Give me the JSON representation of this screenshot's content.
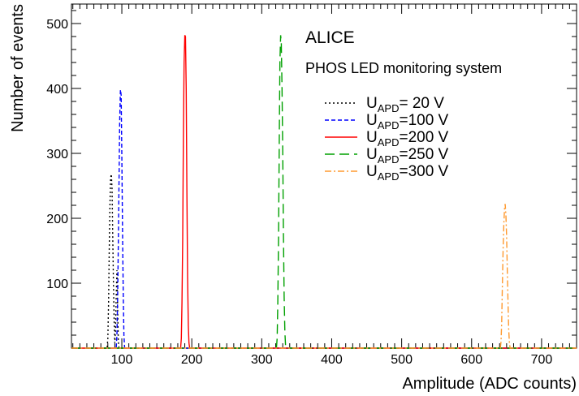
{
  "chart_data": {
    "type": "line",
    "xlabel": "Amplitude (ADC counts)",
    "ylabel": "Number of events",
    "xlim": [
      28,
      750
    ],
    "ylim": [
      0,
      530
    ],
    "x_ticks": [
      100,
      200,
      300,
      400,
      500,
      600,
      700
    ],
    "y_ticks": [
      100,
      200,
      300,
      400,
      500
    ],
    "grid": false,
    "legend_position": "upper-right",
    "annotations": [
      "ALICE",
      "PHOS LED monitoring system"
    ],
    "series": [
      {
        "legend_main": "U",
        "legend_sub": "APD",
        "legend_rest": "=  20 V",
        "color": "#000000",
        "dash": "2,3",
        "x": [
          28,
          79,
          80,
          81,
          82,
          83,
          84,
          85,
          86,
          87,
          88,
          89,
          90,
          91,
          92,
          93,
          94,
          95,
          96,
          750
        ],
        "y": [
          0,
          0,
          15,
          70,
          150,
          220,
          262,
          268,
          245,
          175,
          100,
          40,
          8,
          30,
          80,
          120,
          60,
          10,
          0,
          0
        ]
      },
      {
        "legend_main": "U",
        "legend_sub": "APD",
        "legend_rest": "=100 V",
        "color": "#0000ff",
        "dash": "5,3",
        "x": [
          28,
          92,
          93,
          94,
          95,
          96,
          97,
          98,
          99,
          100,
          101,
          102,
          103,
          104,
          750
        ],
        "y": [
          0,
          0,
          20,
          80,
          160,
          260,
          350,
          398,
          390,
          300,
          180,
          80,
          20,
          0,
          0
        ]
      },
      {
        "legend_main": "U",
        "legend_sub": "APD",
        "legend_rest": "=200 V",
        "color": "#ff0000",
        "dash": "",
        "x": [
          28,
          184,
          185,
          186,
          187,
          188,
          189,
          190,
          191,
          192,
          193,
          194,
          195,
          196,
          197,
          750
        ],
        "y": [
          0,
          0,
          15,
          70,
          170,
          320,
          440,
          482,
          480,
          400,
          250,
          110,
          35,
          8,
          0,
          0
        ]
      },
      {
        "legend_main": "U",
        "legend_sub": "APD",
        "legend_rest": "=250 V",
        "color": "#00a000",
        "dash": "12,6",
        "x": [
          28,
          321,
          322,
          323,
          324,
          325,
          326,
          327,
          328,
          329,
          330,
          331,
          332,
          333,
          334,
          335,
          750
        ],
        "y": [
          0,
          0,
          15,
          70,
          170,
          320,
          440,
          482,
          470,
          400,
          300,
          180,
          80,
          25,
          5,
          0,
          0
        ]
      },
      {
        "legend_main": "U",
        "legend_sub": "APD",
        "legend_rest": "=300 V",
        "color": "#ff9a30",
        "dash": "8,3,2,3",
        "x": [
          28,
          641,
          642,
          643,
          644,
          645,
          646,
          647,
          648,
          649,
          650,
          651,
          652,
          653,
          654,
          655,
          656,
          750
        ],
        "y": [
          0,
          0,
          10,
          40,
          100,
          150,
          190,
          215,
          222,
          205,
          170,
          120,
          70,
          30,
          8,
          0,
          0,
          0
        ]
      }
    ]
  }
}
